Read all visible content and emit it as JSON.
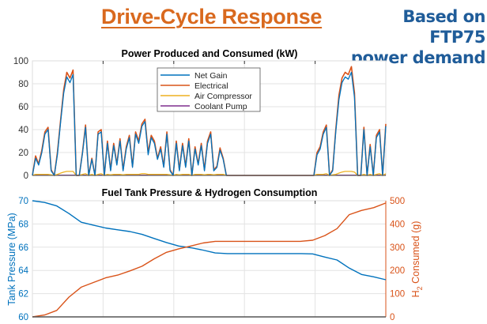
{
  "header": {
    "title": "Drive-Cycle Response",
    "subtitle_line1": "Based on FTP75",
    "subtitle_line2": "power demand"
  },
  "colors": {
    "net_gain": "#0072BD",
    "electrical": "#D95319",
    "air_compressor": "#EDB120",
    "coolant_pump": "#7E2F8E",
    "title": "#D9691E",
    "subtitle": "#1F5C99"
  },
  "chart_data": [
    {
      "type": "line",
      "title": "Power Produced and Consumed (kW)",
      "xlabel": "",
      "ylabel": "",
      "ylim": [
        0,
        100
      ],
      "yticks": [
        0,
        20,
        40,
        60,
        80,
        100
      ],
      "grid": true,
      "legend": "top-center",
      "series": [
        {
          "name": "Net Gain",
          "color": "#0072BD",
          "values": [
            0,
            15,
            9,
            20,
            36,
            40,
            4,
            0,
            18,
            46,
            72,
            86,
            81,
            88,
            0,
            0,
            19,
            42,
            0,
            14,
            0,
            36,
            38,
            0,
            28,
            4,
            26,
            9,
            30,
            4,
            23,
            33,
            7,
            36,
            28,
            43,
            47,
            18,
            33,
            28,
            14,
            23,
            7,
            36,
            4,
            0,
            28,
            4,
            26,
            7,
            30,
            0,
            23,
            9,
            26,
            4,
            28,
            36,
            4,
            7,
            22,
            14,
            0,
            0,
            0,
            0,
            0,
            0,
            0,
            0,
            0,
            0,
            0,
            0,
            0,
            0,
            0,
            0,
            0,
            0,
            0,
            0,
            0,
            0,
            0,
            0,
            0,
            0,
            0,
            0,
            0,
            18,
            23,
            36,
            42,
            0,
            4,
            38,
            66,
            81,
            86,
            84,
            90,
            68,
            0,
            0,
            40,
            0,
            25,
            0,
            33,
            38,
            0,
            43
          ]
        },
        {
          "name": "Electrical",
          "color": "#D95319",
          "values": [
            0,
            17,
            10,
            22,
            38,
            42,
            5,
            0,
            20,
            48,
            75,
            90,
            85,
            92,
            0,
            0,
            20,
            44,
            0,
            15,
            0,
            38,
            40,
            0,
            30,
            5,
            28,
            10,
            32,
            5,
            25,
            35,
            8,
            38,
            30,
            45,
            49,
            20,
            35,
            30,
            15,
            25,
            8,
            38,
            5,
            0,
            30,
            5,
            28,
            8,
            32,
            0,
            25,
            10,
            28,
            5,
            30,
            38,
            5,
            8,
            24,
            15,
            0,
            0,
            0,
            0,
            0,
            0,
            0,
            0,
            0,
            0,
            0,
            0,
            0,
            0,
            0,
            0,
            0,
            0,
            0,
            0,
            0,
            0,
            0,
            0,
            0,
            0,
            0,
            0,
            0,
            20,
            25,
            38,
            44,
            0,
            5,
            40,
            70,
            85,
            90,
            88,
            95,
            72,
            0,
            0,
            42,
            0,
            27,
            0,
            35,
            40,
            0,
            45
          ]
        },
        {
          "name": "Air Compressor",
          "color": "#EDB120",
          "values": [
            0,
            1,
            1,
            1,
            1,
            1,
            0.5,
            0,
            1,
            2,
            3,
            3.5,
            3.5,
            3.5,
            0,
            0,
            1,
            1.5,
            0,
            1,
            0,
            1,
            1.5,
            0,
            1,
            0.5,
            1,
            1,
            1,
            0.5,
            1,
            1,
            1,
            1,
            1,
            1.5,
            1.5,
            1,
            1,
            1,
            1,
            1,
            1,
            1,
            0.5,
            0,
            1,
            0.5,
            1,
            1,
            1,
            0,
            1,
            1,
            1,
            0.5,
            1,
            1,
            0.5,
            1,
            1,
            1,
            0,
            0,
            0,
            0,
            0,
            0,
            0,
            0,
            0,
            0,
            0,
            0,
            0,
            0,
            0,
            0,
            0,
            0,
            0,
            0,
            0,
            0,
            0,
            0,
            0,
            0,
            0,
            0,
            0,
            1,
            1,
            1,
            1.5,
            0,
            0.5,
            1,
            2,
            3,
            3.5,
            3.5,
            3.5,
            3,
            0,
            0,
            1,
            0,
            1,
            0,
            1,
            1.5,
            0,
            1.5
          ]
        },
        {
          "name": "Coolant Pump",
          "color": "#7E2F8E",
          "values": [
            0.3,
            0.3,
            0.3,
            0.3,
            0.3,
            0.3,
            0.3,
            0.3,
            0.3,
            0.3,
            0.3,
            0.3,
            0.3,
            0.3,
            0.3,
            0.3,
            0.3,
            0.3,
            0.3,
            0.3,
            0.3,
            0.3,
            0.3,
            0.3,
            0.3,
            0.3,
            0.3,
            0.3,
            0.3,
            0.3,
            0.3,
            0.3,
            0.3,
            0.3,
            0.3,
            0.3,
            0.3,
            0.3,
            0.3,
            0.3,
            0.3,
            0.3,
            0.3,
            0.3,
            0.3,
            0.3,
            0.3,
            0.3,
            0.3,
            0.3,
            0.3,
            0.3,
            0.3,
            0.3,
            0.3,
            0.3,
            0.3,
            0.3,
            0.3,
            0.3,
            0.3,
            0.3,
            0.3,
            0,
            0,
            0,
            0,
            0,
            0,
            0,
            0,
            0,
            0,
            0,
            0,
            0,
            0,
            0,
            0,
            0,
            0,
            0,
            0,
            0,
            0,
            0,
            0,
            0,
            0,
            0,
            0,
            0.3,
            0.3,
            0.3,
            0.3,
            0.3,
            0.3,
            0.3,
            0.3,
            0.3,
            0.3,
            0.3,
            0.3,
            0.3,
            0.3,
            0.3,
            0.3,
            0.3,
            0.3,
            0.3,
            0.3,
            0.3,
            0.3,
            0.3
          ]
        }
      ]
    },
    {
      "type": "line",
      "title": "Fuel Tank Pressure & Hydrogen Consumption",
      "xlabel": "",
      "ylabel_left": "Tank Pressure (MPa)",
      "ylabel_right_main": "H",
      "ylabel_right_sub": "2",
      "ylabel_right_rest": " Consumed (g)",
      "ylim_left": [
        60,
        70
      ],
      "yticks_left": [
        60,
        62,
        64,
        66,
        68,
        70
      ],
      "ylim_right": [
        0,
        500
      ],
      "yticks_right": [
        0,
        100,
        200,
        300,
        400,
        500
      ],
      "grid": true,
      "series": [
        {
          "name": "Tank Pressure",
          "axis": "left",
          "color": "#0072BD",
          "values": [
            70,
            69.85,
            69.55,
            68.9,
            68.15,
            67.9,
            67.65,
            67.5,
            67.35,
            67.1,
            66.75,
            66.4,
            66.1,
            65.95,
            65.75,
            65.5,
            65.45,
            65.45,
            65.45,
            65.45,
            65.45,
            65.45,
            65.45,
            65.42,
            65.15,
            64.9,
            64.2,
            63.65,
            63.45,
            63.2
          ]
        },
        {
          "name": "H2 Consumed",
          "axis": "right",
          "color": "#D95319",
          "values": [
            0,
            8,
            28,
            85,
            128,
            148,
            168,
            180,
            198,
            218,
            250,
            278,
            293,
            305,
            318,
            325,
            325,
            325,
            325,
            325,
            325,
            325,
            325,
            330,
            350,
            380,
            440,
            458,
            470,
            490
          ]
        }
      ]
    }
  ]
}
